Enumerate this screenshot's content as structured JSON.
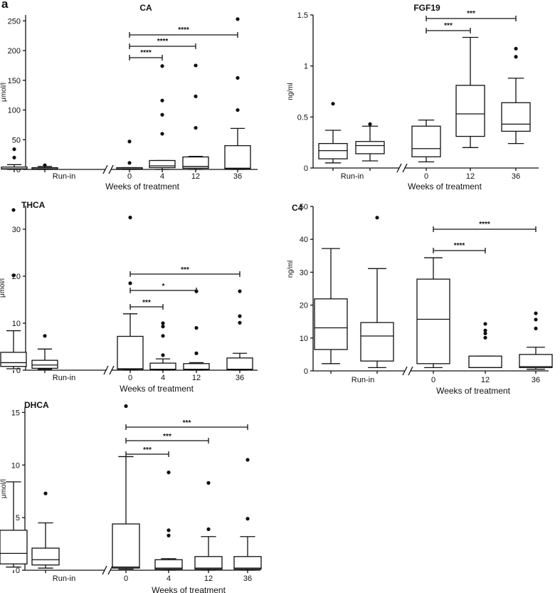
{
  "figure": {
    "panel_letter": "a"
  },
  "chart_data": [
    {
      "type": "box",
      "title": "CA",
      "ylabel": "μmol/l",
      "xlabel": "Weeks of treatment",
      "ylim": [
        0,
        260
      ],
      "yticks": [
        0,
        50,
        100,
        150,
        200,
        250
      ],
      "groups": [
        "",
        "",
        "0",
        "4",
        "12",
        "36"
      ],
      "group_label": "Run-in",
      "boxes": [
        {
          "whisker_low": 0,
          "q1": 0.5,
          "median": 1,
          "q3": 4,
          "whisker_high": 8,
          "outliers": [
            20,
            34
          ]
        },
        {
          "whisker_low": 0,
          "q1": 0.5,
          "median": 1,
          "q3": 3,
          "whisker_high": 5,
          "outliers": [
            7
          ]
        },
        {
          "whisker_low": 0,
          "q1": 0.5,
          "median": 1,
          "q3": 3,
          "whisker_high": 3,
          "outliers": [
            11,
            47
          ]
        },
        {
          "whisker_low": 0,
          "q1": 3,
          "median": 6,
          "q3": 15,
          "whisker_high": 15,
          "outliers": [
            60,
            92,
            116,
            174
          ]
        },
        {
          "whisker_low": 0,
          "q1": 2,
          "median": 5,
          "q3": 21,
          "whisker_high": 22,
          "outliers": [
            70,
            123,
            175
          ]
        },
        {
          "whisker_low": 0,
          "q1": 1,
          "median": 2,
          "q3": 40,
          "whisker_high": 69,
          "outliers": [
            100,
            154,
            253
          ]
        }
      ],
      "significance": [
        {
          "from": "0",
          "to": "4",
          "label": "****"
        },
        {
          "from": "0",
          "to": "12",
          "label": "****"
        },
        {
          "from": "0",
          "to": "36",
          "label": "****"
        }
      ]
    },
    {
      "type": "box",
      "title": "FGF19",
      "ylabel": "ng/ml",
      "xlabel": "Weeks of treatment",
      "ylim": [
        0,
        1.5
      ],
      "yticks": [
        0.0,
        0.5,
        1.0,
        1.5
      ],
      "groups": [
        "",
        "",
        "0",
        "12",
        "36"
      ],
      "group_label": "Run-in",
      "boxes": [
        {
          "whisker_low": 0.05,
          "q1": 0.09,
          "median": 0.17,
          "q3": 0.24,
          "whisker_high": 0.37,
          "outliers": [
            0.63
          ]
        },
        {
          "whisker_low": 0.07,
          "q1": 0.14,
          "median": 0.22,
          "q3": 0.26,
          "whisker_high": 0.41,
          "outliers": [
            0.43
          ]
        },
        {
          "whisker_low": 0.06,
          "q1": 0.11,
          "median": 0.19,
          "q3": 0.41,
          "whisker_high": 0.47,
          "outliers": []
        },
        {
          "whisker_low": 0.2,
          "q1": 0.31,
          "median": 0.53,
          "q3": 0.81,
          "whisker_high": 1.28,
          "outliers": []
        },
        {
          "whisker_low": 0.24,
          "q1": 0.36,
          "median": 0.43,
          "q3": 0.64,
          "whisker_high": 0.88,
          "outliers": [
            1.09,
            1.17
          ]
        }
      ],
      "significance": [
        {
          "from": "0",
          "to": "12",
          "label": "***"
        },
        {
          "from": "0",
          "to": "36",
          "label": "***"
        }
      ]
    },
    {
      "type": "box",
      "title": "THCA",
      "ylabel": "μmol/l",
      "xlabel": "Weeks of treatment",
      "ylim": [
        0,
        35
      ],
      "yticks": [
        0,
        10,
        20,
        30
      ],
      "groups": [
        "",
        "",
        "0",
        "4",
        "12",
        "36"
      ],
      "group_label": "Run-in",
      "boxes": [
        {
          "whisker_low": 0.3,
          "q1": 0.8,
          "median": 1.6,
          "q3": 3.8,
          "whisker_high": 8.4,
          "outliers": [
            20.2,
            34.1
          ]
        },
        {
          "whisker_low": 0.2,
          "q1": 0.4,
          "median": 1.1,
          "q3": 2.1,
          "whisker_high": 4.5,
          "outliers": [
            7.3
          ]
        },
        {
          "whisker_low": 0.1,
          "q1": 0.2,
          "median": 0.3,
          "q3": 7.2,
          "whisker_high": 12,
          "outliers": [
            18.5,
            32.5
          ]
        },
        {
          "whisker_low": 0,
          "q1": 0.1,
          "median": 0.2,
          "q3": 1.5,
          "whisker_high": 2.4,
          "outliers": [
            3.2,
            7.3,
            9.3,
            10.0
          ]
        },
        {
          "whisker_low": 0,
          "q1": 0.1,
          "median": 0.2,
          "q3": 1.4,
          "whisker_high": 1.6,
          "outliers": [
            3.6,
            9.0,
            16.8
          ]
        },
        {
          "whisker_low": 0,
          "q1": 0.1,
          "median": 0.2,
          "q3": 2.6,
          "whisker_high": 3.6,
          "outliers": [
            10.1,
            11.5,
            16.8
          ]
        }
      ],
      "significance": [
        {
          "from": "0",
          "to": "4",
          "label": "***"
        },
        {
          "from": "0",
          "to": "12",
          "label": "*"
        },
        {
          "from": "0",
          "to": "36",
          "label": "***"
        }
      ]
    },
    {
      "type": "box",
      "title": "C4",
      "ylabel": "ng/ml",
      "xlabel": "Weeks of treatment",
      "ylim": [
        0,
        50
      ],
      "yticks": [
        0,
        10,
        20,
        30,
        40,
        50
      ],
      "groups": [
        "",
        "",
        "0",
        "12",
        "36"
      ],
      "group_label": "Run-in",
      "boxes": [
        {
          "whisker_low": 2.2,
          "q1": 6.5,
          "median": 13.1,
          "q3": 21.9,
          "whisker_high": 37.2,
          "outliers": []
        },
        {
          "whisker_low": 1,
          "q1": 3.0,
          "median": 10.6,
          "q3": 14.7,
          "whisker_high": 31.1,
          "outliers": [
            46.6
          ]
        },
        {
          "whisker_low": 1.0,
          "q1": 2.2,
          "median": 15.7,
          "q3": 27.9,
          "whisker_high": 34.4,
          "outliers": []
        },
        {
          "whisker_low": 1.0,
          "q1": 1.0,
          "median": 1.0,
          "q3": 4.5,
          "whisker_high": 4.5,
          "outliers": [
            10.1,
            11.4,
            12.3,
            14.3
          ]
        },
        {
          "whisker_low": 0.5,
          "q1": 1.0,
          "median": 1.3,
          "q3": 5.0,
          "whisker_high": 7.2,
          "outliers": [
            12.9,
            15.6,
            17.5
          ]
        }
      ],
      "significance": [
        {
          "from": "0",
          "to": "12",
          "label": "****"
        },
        {
          "from": "0",
          "to": "36",
          "label": "****"
        }
      ]
    },
    {
      "type": "box",
      "title": "DHCA",
      "ylabel": "μmol/l",
      "xlabel": "Weeks of treatment",
      "ylim": [
        0,
        15.5
      ],
      "yticks": [
        0,
        5,
        10,
        15
      ],
      "groups": [
        "",
        "",
        "0",
        "4",
        "12",
        "36"
      ],
      "group_label": "Run-in",
      "boxes": [
        {
          "whisker_low": 0.3,
          "q1": 0.6,
          "median": 1.6,
          "q3": 3.8,
          "whisker_high": 8.4,
          "outliers": []
        },
        {
          "whisker_low": 0.2,
          "q1": 0.5,
          "median": 1.0,
          "q3": 2.1,
          "whisker_high": 4.5,
          "outliers": [
            7.3
          ]
        },
        {
          "whisker_low": 0.1,
          "q1": 0.2,
          "median": 0.3,
          "q3": 4.4,
          "whisker_high": 10.8,
          "outliers": [
            15.6
          ]
        },
        {
          "whisker_low": 0,
          "q1": 0.1,
          "median": 0.2,
          "q3": 1.0,
          "whisker_high": 1.1,
          "outliers": [
            3.3,
            3.8,
            9.3
          ]
        },
        {
          "whisker_low": 0,
          "q1": 0.1,
          "median": 0.2,
          "q3": 1.3,
          "whisker_high": 3.2,
          "outliers": [
            3.9,
            8.3
          ]
        },
        {
          "whisker_low": 0,
          "q1": 0.1,
          "median": 0.2,
          "q3": 1.3,
          "whisker_high": 3.2,
          "outliers": [
            4.9,
            10.5
          ]
        }
      ],
      "significance": [
        {
          "from": "0",
          "to": "4",
          "label": "***"
        },
        {
          "from": "0",
          "to": "12",
          "label": "***"
        },
        {
          "from": "0",
          "to": "36",
          "label": "***"
        }
      ]
    }
  ]
}
